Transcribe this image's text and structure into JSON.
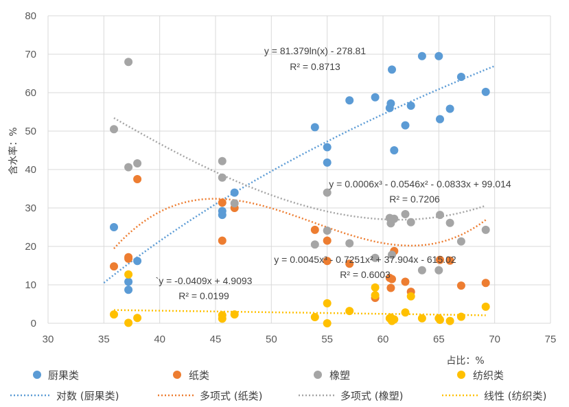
{
  "chart_data": {
    "type": "scatter",
    "title": "",
    "xlabel": "占比：%",
    "ylabel": "含水率：%",
    "xlim": [
      30,
      75
    ],
    "ylim": [
      0,
      80
    ],
    "xticks": [
      30,
      35,
      40,
      45,
      50,
      55,
      60,
      65,
      70,
      75
    ],
    "yticks": [
      0,
      10,
      20,
      30,
      40,
      50,
      60,
      70,
      80
    ],
    "grid": true,
    "legend_position": "bottom",
    "series": [
      {
        "name": "厨果类",
        "color": "#5b9bd5",
        "points": [
          [
            35.9,
            25
          ],
          [
            37.2,
            10.8
          ],
          [
            37.2,
            8.7
          ],
          [
            38,
            16.2
          ],
          [
            45.6,
            28.2
          ],
          [
            45.6,
            29.2
          ],
          [
            46.7,
            34
          ],
          [
            53.9,
            51
          ],
          [
            55,
            45.8
          ],
          [
            55,
            41.8
          ],
          [
            57,
            58
          ],
          [
            59.3,
            58.8
          ],
          [
            60.6,
            56
          ],
          [
            60.7,
            57.2
          ],
          [
            60.8,
            66
          ],
          [
            61,
            45
          ],
          [
            62,
            51.5
          ],
          [
            62.5,
            56.6
          ],
          [
            63.5,
            69.5
          ],
          [
            65,
            69.5
          ],
          [
            65.1,
            53.1
          ],
          [
            66,
            55.8
          ],
          [
            67,
            64.1
          ],
          [
            69.2,
            60.2
          ]
        ]
      },
      {
        "name": "纸类",
        "color": "#ed7d31",
        "points": [
          [
            35.9,
            14.8
          ],
          [
            37.2,
            17.2
          ],
          [
            37.2,
            16.8
          ],
          [
            38,
            37.5
          ],
          [
            45.6,
            31.4
          ],
          [
            45.6,
            21.5
          ],
          [
            46.7,
            30
          ],
          [
            53.9,
            24.3
          ],
          [
            55,
            21.5
          ],
          [
            55,
            16.2
          ],
          [
            57,
            15.5
          ],
          [
            59.3,
            6.6
          ],
          [
            60.6,
            11.8
          ],
          [
            60.7,
            9.2
          ],
          [
            60.8,
            11.5
          ],
          [
            61,
            18.8
          ],
          [
            62,
            10.8
          ],
          [
            62.5,
            8.2
          ],
          [
            65.1,
            16.5
          ],
          [
            66,
            16.3
          ],
          [
            67,
            9.8
          ],
          [
            69.2,
            10.5
          ]
        ]
      },
      {
        "name": "橡塑",
        "color": "#a5a5a5",
        "points": [
          [
            35.9,
            50.5
          ],
          [
            37.2,
            68
          ],
          [
            37.2,
            40.6
          ],
          [
            38,
            41.6
          ],
          [
            45.6,
            42.2
          ],
          [
            45.6,
            37.9
          ],
          [
            46.7,
            31.2
          ],
          [
            53.9,
            20.5
          ],
          [
            55,
            34
          ],
          [
            55,
            24.1
          ],
          [
            57,
            20.8
          ],
          [
            59.3,
            17
          ],
          [
            60.6,
            27.4
          ],
          [
            60.7,
            26
          ],
          [
            60.8,
            17.8
          ],
          [
            61,
            27.2
          ],
          [
            62,
            28.4
          ],
          [
            62.5,
            26.3
          ],
          [
            63.5,
            13.8
          ],
          [
            65,
            13.8
          ],
          [
            65.1,
            28.2
          ],
          [
            66,
            26.1
          ],
          [
            67,
            21.3
          ],
          [
            69.2,
            24.3
          ]
        ]
      },
      {
        "name": "纺织类",
        "color": "#ffc000",
        "points": [
          [
            35.9,
            2.3
          ],
          [
            37.2,
            12.7
          ],
          [
            37.2,
            0.1
          ],
          [
            38,
            1.4
          ],
          [
            45.6,
            2.1
          ],
          [
            45.6,
            1.2
          ],
          [
            46.7,
            2.3
          ],
          [
            53.9,
            1.6
          ],
          [
            55,
            5.2
          ],
          [
            55,
            0
          ],
          [
            57,
            3.2
          ],
          [
            59.3,
            9.3
          ],
          [
            59.3,
            7.3
          ],
          [
            60.6,
            1.3
          ],
          [
            60.7,
            1.5
          ],
          [
            60.8,
            0.6
          ],
          [
            61,
            1
          ],
          [
            62,
            2.8
          ],
          [
            62.5,
            7
          ],
          [
            63.5,
            1.3
          ],
          [
            65,
            1.3
          ],
          [
            65.1,
            0.9
          ],
          [
            66,
            0.6
          ],
          [
            67,
            1.7
          ],
          [
            69.2,
            4.3
          ]
        ]
      }
    ],
    "trendlines": [
      {
        "name": "对数 (厨果类)",
        "series": "厨果类",
        "kind": "log",
        "coef": [
          81.379,
          -278.81
        ],
        "xrange": [
          35,
          70
        ],
        "color": "#5b9bd5"
      },
      {
        "name": "多项式 (纸类)",
        "series": "纸类",
        "kind": "poly3",
        "coef": [
          0.0045,
          -0.7251,
          37.904,
          -615.02
        ],
        "xrange": [
          35.9,
          69.2
        ],
        "color": "#ed7d31"
      },
      {
        "name": "多项式 (橡塑)",
        "series": "橡塑",
        "kind": "poly3",
        "coef": [
          0.0006,
          -0.0546,
          -0.0833,
          99.014
        ],
        "xrange": [
          35.9,
          69.2
        ],
        "color": "#a5a5a5"
      },
      {
        "name": "线性 (纺织类)",
        "series": "纺织类",
        "kind": "linear",
        "coef": [
          -0.0409,
          4.9093
        ],
        "xrange": [
          35.9,
          69.2
        ],
        "color": "#ffc000"
      }
    ],
    "annotations": {
      "log_eq": "y = 81.379ln(x) - 278.81",
      "log_r2": "R² = 0.8713",
      "rubber_eq": "y = 0.0006x³ - 0.0546x² - 0.0833x + 99.014",
      "rubber_r2": "R² = 0.7206",
      "paper_eq": "y = 0.0045x³ - 0.7251x² + 37.904x - 615.02",
      "paper_r2": "R² = 0.6003",
      "textile_eq": "`y = -0.0409x + 4.9093",
      "textile_r2": "R² = 0.0199"
    }
  }
}
